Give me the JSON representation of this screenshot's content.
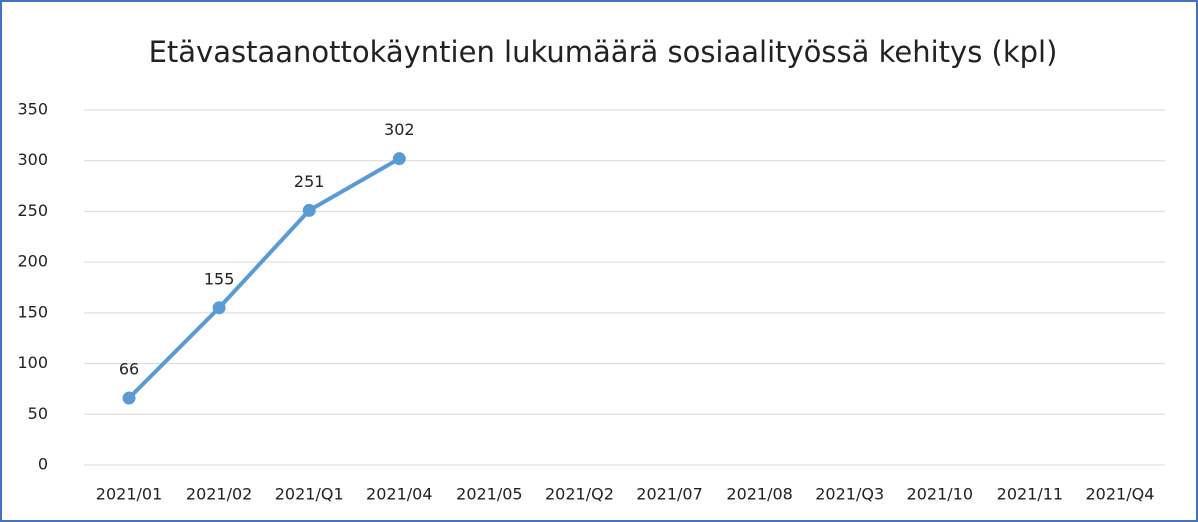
{
  "chart_data": {
    "type": "line",
    "title": "Etävastaanottokäyntien lukumäärä sosiaalityössä kehitys (kpl)",
    "categories": [
      "2021/01",
      "2021/02",
      "2021/Q1",
      "2021/04",
      "2021/05",
      "2021/Q2",
      "2021/07",
      "2021/08",
      "2021/Q3",
      "2021/10",
      "2021/11",
      "2021/Q4"
    ],
    "values": [
      66,
      155,
      251,
      302,
      null,
      null,
      null,
      null,
      null,
      null,
      null,
      null
    ],
    "color": "#5b9bd5",
    "ylim": [
      0,
      350
    ],
    "yticks": [
      0,
      50,
      100,
      150,
      200,
      250,
      300,
      350
    ],
    "grid": true
  }
}
